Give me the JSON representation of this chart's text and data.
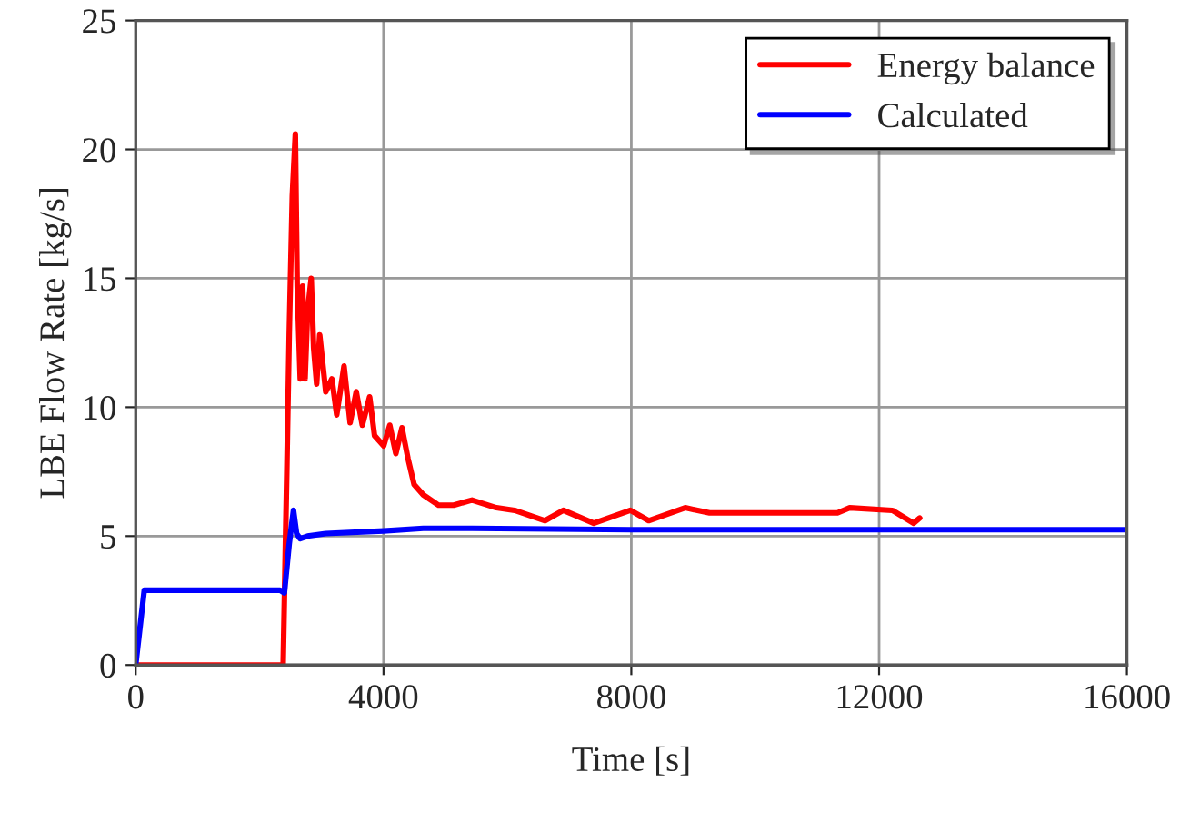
{
  "chart_data": {
    "type": "line",
    "xlabel": "Time [s]",
    "ylabel": "LBE Flow Rate [kg/s]",
    "xlim": [
      0,
      16000
    ],
    "ylim": [
      0,
      25
    ],
    "xticks": [
      0,
      4000,
      8000,
      12000,
      16000
    ],
    "yticks": [
      0,
      5,
      10,
      15,
      20,
      25
    ],
    "grid": true,
    "legend": "top right",
    "series": [
      {
        "name": "Energy balance",
        "color": "#ff0000",
        "x": [
          0,
          2380,
          2439,
          2478,
          2528,
          2577,
          2607,
          2656,
          2695,
          2734,
          2774,
          2833,
          2872,
          2921,
          2970,
          3068,
          3167,
          3245,
          3363,
          3461,
          3560,
          3658,
          3776,
          3855,
          4003,
          4101,
          4199,
          4298,
          4396,
          4494,
          4642,
          4888,
          5133,
          5428,
          5822,
          6116,
          6608,
          6903,
          7394,
          7985,
          8280,
          8870,
          9263,
          11328,
          11525,
          12213,
          12557,
          12655
        ],
        "values": [
          0,
          0,
          7.5,
          12.8,
          18.2,
          20.6,
          14.7,
          11.1,
          14.7,
          11.1,
          13.7,
          15.0,
          12.3,
          10.9,
          12.8,
          10.6,
          11.1,
          9.7,
          11.6,
          9.4,
          10.6,
          9.3,
          10.4,
          8.9,
          8.5,
          9.3,
          8.2,
          9.2,
          8.0,
          7.0,
          6.6,
          6.2,
          6.2,
          6.4,
          6.1,
          6.0,
          5.6,
          6.0,
          5.5,
          6.0,
          5.6,
          6.1,
          5.9,
          5.9,
          6.1,
          6.0,
          5.5,
          5.7
        ]
      },
      {
        "name": "Calculated",
        "color": "#0000ff",
        "x": [
          0,
          138,
          2331,
          2400,
          2478,
          2547,
          2597,
          2656,
          2774,
          3068,
          4003,
          4642,
          5429,
          8000,
          12000,
          16000
        ],
        "values": [
          0,
          2.9,
          2.9,
          2.8,
          4.7,
          6.0,
          5.1,
          4.9,
          5.0,
          5.1,
          5.2,
          5.3,
          5.3,
          5.25,
          5.25,
          5.25
        ]
      }
    ]
  }
}
